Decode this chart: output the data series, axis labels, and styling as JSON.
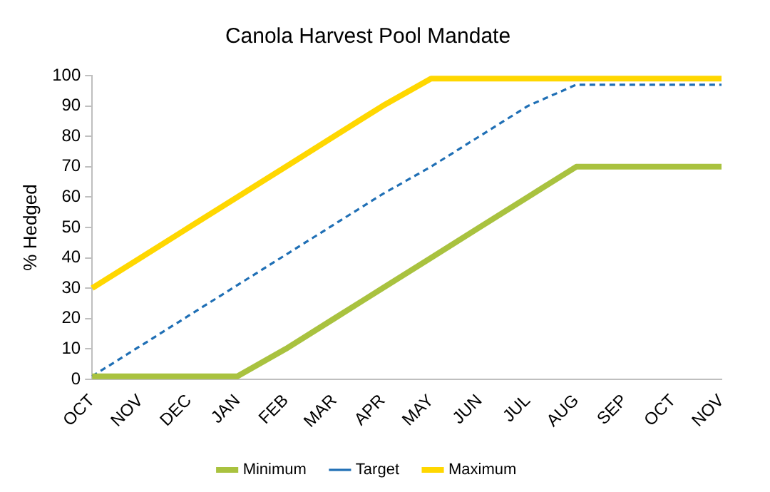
{
  "chart_data": {
    "type": "line",
    "title": "Canola Harvest Pool Mandate",
    "ylabel": "% Hedged",
    "categories": [
      "OCT",
      "NOV",
      "DEC",
      "JAN",
      "FEB",
      "MAR",
      "APR",
      "MAY",
      "JUN",
      "JUL",
      "AUG",
      "SEP",
      "OCT",
      "NOV"
    ],
    "series": [
      {
        "name": "Minimum",
        "color": "#a9c23f",
        "values": [
          1,
          1,
          1,
          1,
          10,
          20,
          30,
          40,
          50,
          60,
          70,
          70,
          70,
          70
        ]
      },
      {
        "name": "Target",
        "color": "#1f6fb5",
        "line_style": "dashed",
        "values": [
          1,
          11,
          21,
          31,
          41,
          51,
          61,
          70,
          80,
          90,
          97,
          97,
          97,
          97
        ]
      },
      {
        "name": "Maximum",
        "color": "#ffd700",
        "values": [
          30,
          40,
          50,
          60,
          70,
          80,
          90,
          99,
          99,
          99,
          99,
          99,
          99,
          99
        ]
      }
    ],
    "ylim": [
      0,
      100
    ],
    "yticks": [
      0,
      10,
      20,
      30,
      40,
      50,
      60,
      70,
      80,
      90,
      100
    ],
    "grid": false,
    "legend": "bottom",
    "marker": "none",
    "line_style": "solid"
  }
}
